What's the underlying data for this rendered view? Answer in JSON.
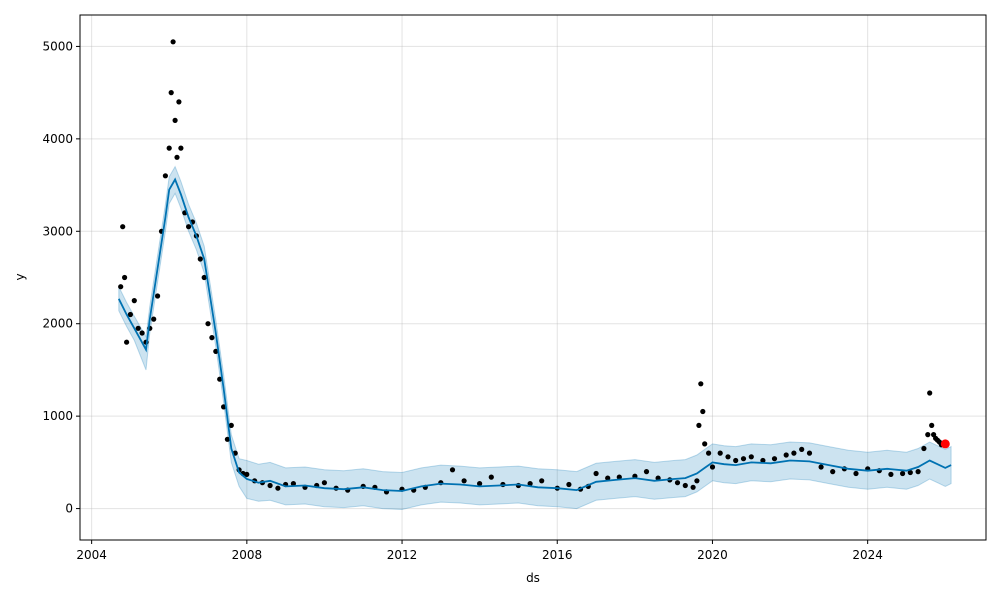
{
  "chart_data": {
    "type": "line",
    "xlabel": "ds",
    "ylabel": "y",
    "xlim": [
      2003.7,
      2027.05
    ],
    "ylim": [
      -340,
      5340
    ],
    "x_ticks": [
      2004,
      2008,
      2012,
      2016,
      2020,
      2024
    ],
    "x_tick_labels": [
      "2004",
      "2008",
      "2012",
      "2016",
      "2020",
      "2024"
    ],
    "y_ticks": [
      0,
      1000,
      2000,
      3000,
      4000,
      5000
    ],
    "y_tick_labels": [
      "0",
      "1000",
      "2000",
      "3000",
      "4000",
      "5000"
    ],
    "grid": true,
    "colors": {
      "observed": "#000000",
      "forecast": "#0072B2",
      "interval": "#0072B2",
      "highlight": "#ff0000"
    },
    "series": [
      {
        "kind": "forecast",
        "x": [
          2004.7,
          2004.9,
          2005.1,
          2005.4,
          2005.5,
          2005.7,
          2005.9,
          2006.0,
          2006.15,
          2006.3,
          2006.5,
          2006.7,
          2006.9,
          2007.05,
          2007.2,
          2007.4,
          2007.6,
          2007.8,
          2008.0,
          2008.3,
          2008.6,
          2009.0,
          2009.5,
          2010.0,
          2010.5,
          2011.0,
          2011.5,
          2012.0,
          2012.5,
          2013.0,
          2013.5,
          2014.0,
          2014.5,
          2015.0,
          2015.5,
          2016.0,
          2016.5,
          2017.0,
          2017.5,
          2018.0,
          2018.5,
          2019.0,
          2019.3,
          2019.6,
          2019.8,
          2020.0,
          2020.3,
          2020.6,
          2021.0,
          2021.5,
          2022.0,
          2022.5,
          2023.0,
          2023.5,
          2024.0,
          2024.5,
          2025.0,
          2025.3,
          2025.6,
          2025.8,
          2026.0,
          2026.15
        ],
        "y": [
          2270,
          2100,
          1950,
          1720,
          2050,
          2600,
          3150,
          3450,
          3560,
          3400,
          3150,
          2950,
          2700,
          2300,
          1900,
          1300,
          650,
          390,
          320,
          280,
          300,
          240,
          250,
          220,
          210,
          230,
          200,
          190,
          240,
          270,
          260,
          240,
          250,
          260,
          230,
          220,
          200,
          290,
          310,
          330,
          300,
          320,
          330,
          380,
          440,
          500,
          480,
          470,
          500,
          490,
          520,
          510,
          470,
          430,
          410,
          430,
          410,
          450,
          520,
          480,
          440,
          470
        ]
      },
      {
        "kind": "interval",
        "x": [
          2004.7,
          2004.9,
          2005.1,
          2005.4,
          2005.5,
          2005.7,
          2005.9,
          2006.0,
          2006.15,
          2006.3,
          2006.5,
          2006.7,
          2006.9,
          2007.05,
          2007.2,
          2007.4,
          2007.6,
          2007.8,
          2008.0,
          2008.3,
          2008.6,
          2009.0,
          2009.5,
          2010.0,
          2010.5,
          2011.0,
          2011.5,
          2012.0,
          2012.5,
          2013.0,
          2013.5,
          2014.0,
          2014.5,
          2015.0,
          2015.5,
          2016.0,
          2016.5,
          2017.0,
          2017.5,
          2018.0,
          2018.5,
          2019.0,
          2019.3,
          2019.6,
          2019.8,
          2020.0,
          2020.3,
          2020.6,
          2021.0,
          2021.5,
          2022.0,
          2022.5,
          2023.0,
          2023.5,
          2024.0,
          2024.5,
          2025.0,
          2025.3,
          2025.6,
          2025.8,
          2026.0,
          2026.15
        ],
        "lower": [
          2140,
          1970,
          1820,
          1500,
          1900,
          2450,
          3000,
          3300,
          3410,
          3250,
          3000,
          2800,
          2550,
          2150,
          1750,
          1150,
          500,
          240,
          110,
          80,
          90,
          40,
          50,
          20,
          10,
          30,
          0,
          -10,
          40,
          70,
          60,
          40,
          50,
          60,
          30,
          20,
          0,
          90,
          110,
          130,
          100,
          120,
          130,
          180,
          240,
          300,
          280,
          270,
          300,
          290,
          320,
          310,
          270,
          230,
          210,
          230,
          210,
          250,
          320,
          280,
          240,
          270
        ],
        "upper": [
          2400,
          2230,
          2080,
          1860,
          2190,
          2740,
          3290,
          3590,
          3700,
          3540,
          3290,
          3090,
          2840,
          2440,
          2040,
          1450,
          800,
          540,
          520,
          480,
          500,
          440,
          450,
          420,
          410,
          430,
          400,
          390,
          440,
          470,
          460,
          440,
          450,
          460,
          430,
          420,
          400,
          490,
          510,
          530,
          500,
          520,
          530,
          580,
          640,
          700,
          680,
          670,
          700,
          690,
          720,
          710,
          670,
          630,
          610,
          630,
          610,
          650,
          720,
          680,
          640,
          670
        ]
      },
      {
        "kind": "observed",
        "x": [
          2004.75,
          2004.8,
          2004.85,
          2004.9,
          2005.0,
          2005.1,
          2005.2,
          2005.3,
          2005.4,
          2005.5,
          2005.6,
          2005.7,
          2005.8,
          2005.9,
          2006.0,
          2006.05,
          2006.1,
          2006.15,
          2006.2,
          2006.25,
          2006.3,
          2006.4,
          2006.5,
          2006.6,
          2006.7,
          2006.8,
          2006.9,
          2007.0,
          2007.1,
          2007.2,
          2007.3,
          2007.4,
          2007.5,
          2007.6,
          2007.7,
          2007.8,
          2007.9,
          2008.0,
          2008.2,
          2008.4,
          2008.6,
          2008.8,
          2009.0,
          2009.2,
          2009.5,
          2009.8,
          2010.0,
          2010.3,
          2010.6,
          2011.0,
          2011.3,
          2011.6,
          2012.0,
          2012.3,
          2012.6,
          2013.0,
          2013.3,
          2013.6,
          2014.0,
          2014.3,
          2014.6,
          2015.0,
          2015.3,
          2015.6,
          2016.0,
          2016.3,
          2016.6,
          2016.8,
          2017.0,
          2017.3,
          2017.6,
          2018.0,
          2018.3,
          2018.6,
          2018.9,
          2019.1,
          2019.3,
          2019.5,
          2019.6,
          2019.65,
          2019.7,
          2019.75,
          2019.8,
          2019.9,
          2020.0,
          2020.2,
          2020.4,
          2020.6,
          2020.8,
          2021.0,
          2021.3,
          2021.6,
          2021.9,
          2022.1,
          2022.3,
          2022.5,
          2022.8,
          2023.1,
          2023.4,
          2023.7,
          2024.0,
          2024.3,
          2024.6,
          2024.9,
          2025.1,
          2025.3,
          2025.45,
          2025.55,
          2025.6,
          2025.65,
          2025.7,
          2025.75,
          2025.8,
          2025.85,
          2025.9
        ],
        "y": [
          2400,
          3050,
          2500,
          1800,
          2100,
          2250,
          1950,
          1900,
          1800,
          1950,
          2050,
          2300,
          3000,
          3600,
          3900,
          4500,
          5050,
          4200,
          3800,
          4400,
          3900,
          3200,
          3050,
          3100,
          2950,
          2700,
          2500,
          2000,
          1850,
          1700,
          1400,
          1100,
          750,
          900,
          600,
          420,
          380,
          370,
          300,
          280,
          250,
          220,
          260,
          270,
          230,
          250,
          280,
          220,
          200,
          240,
          230,
          180,
          210,
          200,
          230,
          280,
          420,
          300,
          270,
          340,
          260,
          250,
          270,
          300,
          220,
          260,
          210,
          240,
          380,
          330,
          340,
          350,
          400,
          330,
          310,
          280,
          250,
          230,
          300,
          900,
          1350,
          1050,
          700,
          600,
          450,
          600,
          560,
          520,
          540,
          560,
          520,
          540,
          580,
          600,
          640,
          600,
          450,
          400,
          430,
          380,
          430,
          410,
          370,
          380,
          390,
          400,
          650,
          800,
          1250,
          900,
          800,
          760,
          740,
          720,
          690
        ]
      },
      {
        "kind": "highlight",
        "x": [
          2026.0
        ],
        "y": [
          700
        ]
      }
    ]
  }
}
